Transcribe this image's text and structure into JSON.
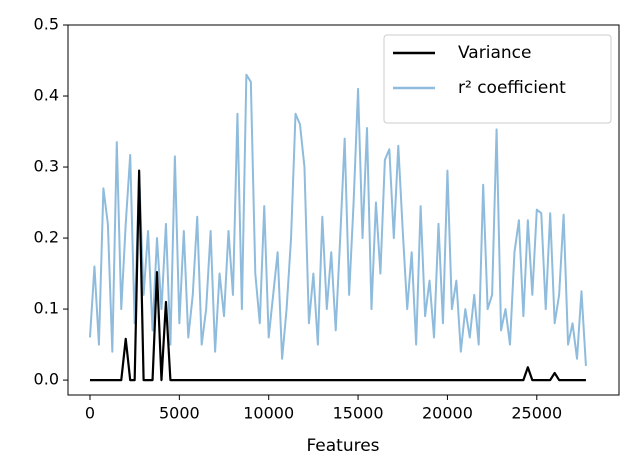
{
  "chart_data": {
    "type": "line",
    "xlabel": "Features",
    "x": [
      0,
      250,
      500,
      750,
      1000,
      1250,
      1500,
      1750,
      2000,
      2250,
      2500,
      2750,
      3000,
      3250,
      3500,
      3750,
      4000,
      4250,
      4500,
      4750,
      5000,
      5250,
      5500,
      5750,
      6000,
      6250,
      6500,
      6750,
      7000,
      7250,
      7500,
      7750,
      8000,
      8250,
      8500,
      8750,
      9000,
      9250,
      9500,
      9750,
      10000,
      10250,
      10500,
      10750,
      11000,
      11250,
      11500,
      11750,
      12000,
      12250,
      12500,
      12750,
      13000,
      13250,
      13500,
      13750,
      14000,
      14250,
      14500,
      14750,
      15000,
      15250,
      15500,
      15750,
      16000,
      16250,
      16500,
      16750,
      17000,
      17250,
      17500,
      17750,
      18000,
      18250,
      18500,
      18750,
      19000,
      19250,
      19500,
      19750,
      20000,
      20250,
      20500,
      20750,
      21000,
      21250,
      21500,
      21750,
      22000,
      22250,
      22500,
      22750,
      23000,
      23250,
      23500,
      23750,
      24000,
      24250,
      24500,
      24750,
      25000,
      25250,
      25500,
      25750,
      26000,
      26250,
      26500,
      26750,
      27000,
      27250,
      27500,
      27750
    ],
    "series": [
      {
        "name": "Variance",
        "color": "#000000",
        "values": [
          0,
          0,
          0,
          0,
          0,
          0,
          0,
          0,
          0.058,
          0,
          0,
          0.295,
          0,
          0,
          0,
          0.152,
          0,
          0.11,
          0,
          0,
          0,
          0,
          0,
          0,
          0,
          0,
          0,
          0,
          0,
          0,
          0,
          0,
          0,
          0,
          0,
          0,
          0,
          0,
          0,
          0,
          0,
          0,
          0,
          0,
          0,
          0,
          0,
          0,
          0,
          0,
          0,
          0,
          0,
          0,
          0,
          0,
          0,
          0,
          0,
          0,
          0,
          0,
          0,
          0,
          0,
          0,
          0,
          0,
          0,
          0,
          0,
          0,
          0,
          0,
          0,
          0,
          0,
          0,
          0,
          0,
          0,
          0,
          0,
          0,
          0,
          0,
          0,
          0,
          0,
          0,
          0,
          0,
          0,
          0,
          0,
          0,
          0,
          0,
          0.018,
          0,
          0,
          0,
          0,
          0,
          0.01,
          0,
          0,
          0,
          0,
          0,
          0,
          0
        ]
      },
      {
        "name": "r² coefficient",
        "color": "#8fbcdc",
        "values": [
          0.06,
          0.16,
          0.05,
          0.27,
          0.22,
          0.04,
          0.335,
          0.1,
          0.22,
          0.317,
          0.08,
          0.29,
          0.12,
          0.21,
          0.07,
          0.2,
          0.1,
          0.22,
          0.05,
          0.315,
          0.08,
          0.21,
          0.06,
          0.12,
          0.23,
          0.05,
          0.1,
          0.21,
          0.04,
          0.15,
          0.09,
          0.21,
          0.12,
          0.375,
          0.1,
          0.43,
          0.42,
          0.15,
          0.08,
          0.245,
          0.06,
          0.12,
          0.18,
          0.03,
          0.1,
          0.2,
          0.375,
          0.36,
          0.3,
          0.08,
          0.15,
          0.05,
          0.23,
          0.1,
          0.18,
          0.07,
          0.2,
          0.34,
          0.12,
          0.25,
          0.41,
          0.2,
          0.355,
          0.1,
          0.25,
          0.15,
          0.31,
          0.325,
          0.2,
          0.33,
          0.21,
          0.1,
          0.18,
          0.05,
          0.245,
          0.09,
          0.14,
          0.06,
          0.22,
          0.08,
          0.295,
          0.1,
          0.14,
          0.04,
          0.1,
          0.06,
          0.12,
          0.05,
          0.275,
          0.1,
          0.12,
          0.353,
          0.07,
          0.1,
          0.05,
          0.18,
          0.225,
          0.09,
          0.225,
          0.12,
          0.24,
          0.235,
          0.1,
          0.235,
          0.08,
          0.12,
          0.233,
          0.05,
          0.08,
          0.03,
          0.125,
          0.02
        ]
      }
    ],
    "xlim": [
      -1230,
      29600
    ],
    "ylim": [
      -0.021,
      0.5
    ],
    "xticks": [
      0,
      5000,
      10000,
      15000,
      20000,
      25000
    ],
    "yticks": [
      {
        "value": 0,
        "label": "0.0"
      },
      {
        "value": 0.1,
        "label": "0.1"
      },
      {
        "value": 0.2,
        "label": "0.2"
      },
      {
        "value": 0.3,
        "label": "0.3"
      },
      {
        "value": 0.4,
        "label": "0.4"
      },
      {
        "value": 0.5,
        "label": "0.5"
      }
    ],
    "legend": "upper right"
  }
}
